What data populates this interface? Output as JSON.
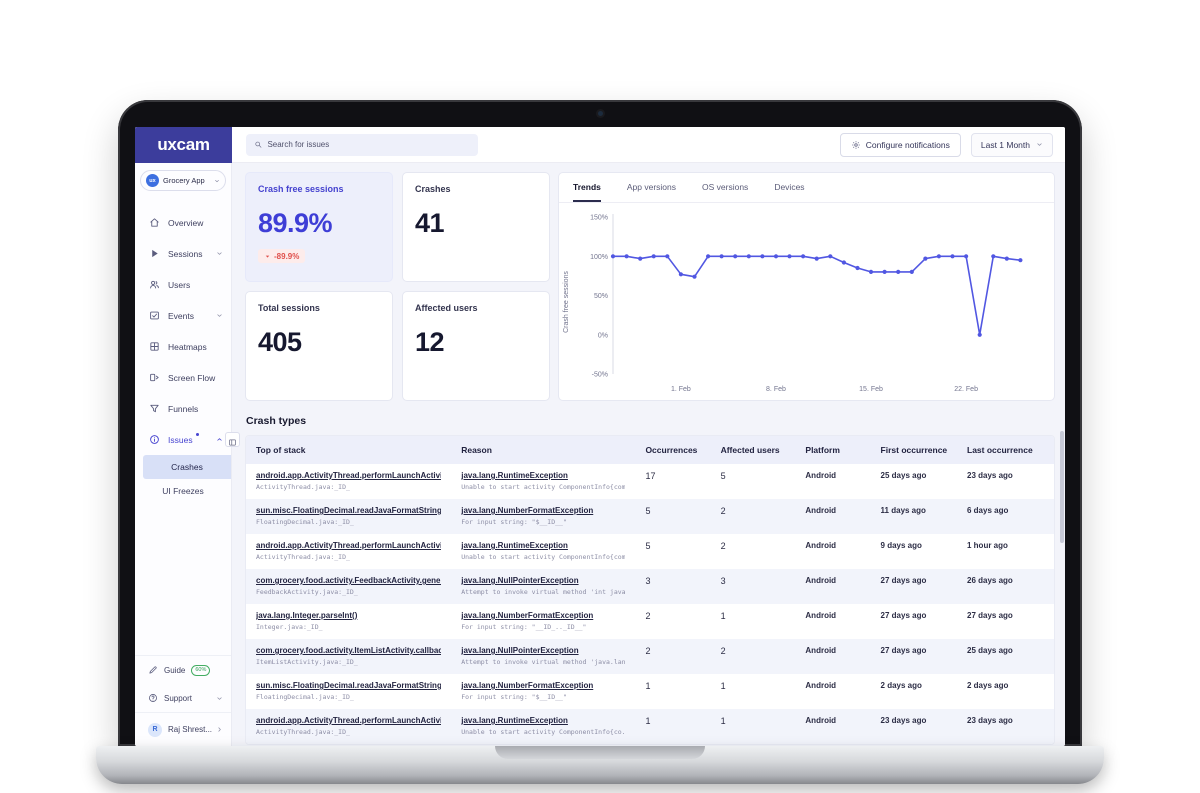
{
  "header": {
    "logo": "uxcam",
    "search": {
      "placeholder": "Search for issues"
    },
    "configure_notifications": "Configure notifications",
    "date_range": "Last 1 Month"
  },
  "sidebar": {
    "app_selector": {
      "label": "Grocery App",
      "logo_text": "ux"
    },
    "items": [
      {
        "id": "overview",
        "label": "Overview",
        "icon": "home"
      },
      {
        "id": "sessions",
        "label": "Sessions",
        "icon": "play",
        "chevron": "down"
      },
      {
        "id": "users",
        "label": "Users",
        "icon": "users"
      },
      {
        "id": "events",
        "label": "Events",
        "icon": "events",
        "chevron": "down"
      },
      {
        "id": "heatmaps",
        "label": "Heatmaps",
        "icon": "heatmap"
      },
      {
        "id": "screen-flow",
        "label": "Screen Flow",
        "icon": "screen"
      },
      {
        "id": "funnels",
        "label": "Funnels",
        "icon": "funnel"
      },
      {
        "id": "issues",
        "label": "Issues",
        "icon": "info",
        "chevron": "up",
        "active": true,
        "notification_dot": true
      }
    ],
    "issue_sub_items": [
      {
        "id": "crashes",
        "label": "Crashes",
        "selected": true
      },
      {
        "id": "ui-freezes",
        "label": "UI Freezes",
        "selected": false
      }
    ],
    "bottom_items": [
      {
        "id": "guide",
        "label": "Guide",
        "icon": "pencil",
        "badge": "60%"
      },
      {
        "id": "support",
        "label": "Support",
        "icon": "question",
        "chevron": "down"
      },
      {
        "id": "user",
        "label": "Raj Shrest...",
        "avatar": "R",
        "chevron": "right"
      }
    ]
  },
  "stats": [
    {
      "label": "Crash free sessions",
      "value": "89.9%",
      "delta": "-89.9%",
      "highlighted": true
    },
    {
      "label": "Crashes",
      "value": "41"
    },
    {
      "label": "Total sessions",
      "value": "405"
    },
    {
      "label": "Affected users",
      "value": "12"
    }
  ],
  "trends": {
    "tabs": [
      "Trends",
      "App versions",
      "OS versions",
      "Devices"
    ],
    "active_tab": "Trends"
  },
  "chart_data": {
    "type": "line",
    "title": "",
    "xlabel": "",
    "ylabel": "Crash free sessions",
    "ylim": [
      -50,
      150
    ],
    "yticks": [
      {
        "value": 150,
        "label": "150%"
      },
      {
        "value": 100,
        "label": "100%"
      },
      {
        "value": 50,
        "label": "50%"
      },
      {
        "value": 0,
        "label": "0%"
      },
      {
        "value": -50,
        "label": "-50%"
      }
    ],
    "xlim": [
      0,
      31
    ],
    "xticks": [
      {
        "x": 5,
        "label": "1. Feb"
      },
      {
        "x": 12,
        "label": "8. Feb"
      },
      {
        "x": 19,
        "label": "15. Feb"
      },
      {
        "x": 26,
        "label": "22. Feb"
      }
    ],
    "grid": false,
    "legend": "none",
    "series": [
      {
        "name": "Crash free sessions",
        "color": "#5157e2",
        "x": [
          0,
          1,
          2,
          3,
          4,
          5,
          6,
          7,
          8,
          9,
          10,
          11,
          12,
          13,
          14,
          15,
          16,
          17,
          18,
          19,
          20,
          21,
          22,
          23,
          24,
          25,
          26,
          27,
          28,
          29,
          30
        ],
        "y": [
          100,
          100,
          97,
          100,
          100,
          77,
          74,
          100,
          100,
          100,
          100,
          100,
          100,
          100,
          100,
          97,
          100,
          92,
          85,
          80,
          80,
          80,
          80,
          97,
          100,
          100,
          100,
          0,
          100,
          97,
          95
        ]
      }
    ]
  },
  "crash_types": {
    "title": "Crash types",
    "columns": [
      "Top of stack",
      "Reason",
      "Occurrences",
      "Affected users",
      "Platform",
      "First occurrence",
      "Last occurrence"
    ],
    "rows": [
      {
        "stack": "android.app.ActivityThread.performLaunchActivi...",
        "stack_sub": "ActivityThread.java:_ID_",
        "reason": "java.lang.RuntimeException",
        "reason_sub": "Unable to start activity ComponentInfo{com.gr...",
        "occurrences": "17",
        "affected_users": "5",
        "platform": "Android",
        "first_occurrence": "25 days ago",
        "last_occurrence": "23 days ago"
      },
      {
        "stack": "sun.misc.FloatingDecimal.readJavaFormatString()",
        "stack_sub": "FloatingDecimal.java:_ID_",
        "reason": "java.lang.NumberFormatException",
        "reason_sub": "For input string: \"$__ID__\"",
        "occurrences": "5",
        "affected_users": "2",
        "platform": "Android",
        "first_occurrence": "11 days ago",
        "last_occurrence": "6 days ago"
      },
      {
        "stack": "android.app.ActivityThread.performLaunchActivi...",
        "stack_sub": "ActivityThread.java:_ID_",
        "reason": "java.lang.RuntimeException",
        "reason_sub": "Unable to start activity ComponentInfo{com.gr...",
        "occurrences": "5",
        "affected_users": "2",
        "platform": "Android",
        "first_occurrence": "9 days ago",
        "last_occurrence": "1 hour ago"
      },
      {
        "stack": "com.grocery.food.activity.FeedbackActivity.gener...",
        "stack_sub": "FeedbackActivity.java:_ID_",
        "reason": "java.lang.NullPointerException",
        "reason_sub": "Attempt to invoke virtual method 'int java.la...",
        "occurrences": "3",
        "affected_users": "3",
        "platform": "Android",
        "first_occurrence": "27 days ago",
        "last_occurrence": "26 days ago"
      },
      {
        "stack": "java.lang.Integer.parseInt()",
        "stack_sub": "Integer.java:_ID_",
        "reason": "java.lang.NumberFormatException",
        "reason_sub": "For input string: \"__ID_.._ID__\"",
        "occurrences": "2",
        "affected_users": "1",
        "platform": "Android",
        "first_occurrence": "27 days ago",
        "last_occurrence": "27 days ago"
      },
      {
        "stack": "com.grocery.food.activity.ItemListActivity.callbac...",
        "stack_sub": "ItemListActivity.java:_ID_",
        "reason": "java.lang.NullPointerException",
        "reason_sub": "Attempt to invoke virtual method 'java.lang.S...",
        "occurrences": "2",
        "affected_users": "2",
        "platform": "Android",
        "first_occurrence": "27 days ago",
        "last_occurrence": "25 days ago"
      },
      {
        "stack": "sun.misc.FloatingDecimal.readJavaFormatString()",
        "stack_sub": "FloatingDecimal.java:_ID_",
        "reason": "java.lang.NumberFormatException",
        "reason_sub": "For input string: \"$__ID__\"",
        "occurrences": "1",
        "affected_users": "1",
        "platform": "Android",
        "first_occurrence": "2 days ago",
        "last_occurrence": "2 days ago"
      },
      {
        "stack": "android.app.ActivityThread.performLaunchActivi...",
        "stack_sub": "ActivityThread.java:_ID_",
        "reason": "java.lang.RuntimeException",
        "reason_sub": "Unable to start activity ComponentInfo{co...",
        "occurrences": "1",
        "affected_users": "1",
        "platform": "Android",
        "first_occurrence": "23 days ago",
        "last_occurrence": "23 days ago"
      }
    ]
  },
  "colors": {
    "accent": "#4744d0",
    "brand": "#3c3d9c",
    "line": "#5157e2",
    "negative": "#e0504c",
    "highlight_bg": "#d8e0f7"
  }
}
